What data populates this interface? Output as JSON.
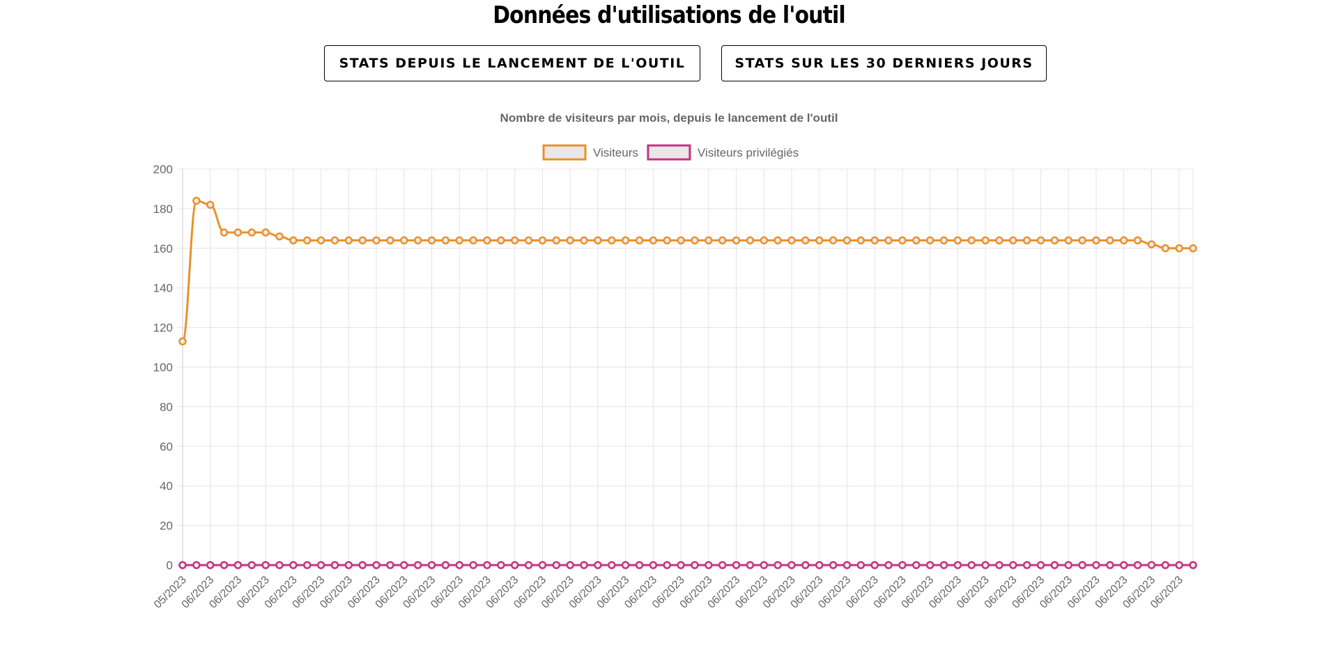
{
  "page": {
    "title": "Données d'utilisations de l'outil"
  },
  "buttons": {
    "since_launch_label": "STATS DEPUIS LE LANCEMENT DE L'OUTIL",
    "last_30_days_label": "STATS SUR LES 30 DERNIERS JOURS"
  },
  "chart_data": {
    "type": "line",
    "title": "Nombre de visiteurs par mois, depuis le lancement de l'outil",
    "xlabel": "",
    "ylabel": "",
    "ylim": [
      0,
      200
    ],
    "yticks": [
      0,
      20,
      40,
      60,
      80,
      100,
      120,
      140,
      160,
      180,
      200
    ],
    "grid": true,
    "legend_position": "top-center",
    "x": [
      "05/2023",
      "06/2023",
      "06/2023",
      "06/2023",
      "06/2023",
      "06/2023",
      "06/2023",
      "06/2023",
      "06/2023",
      "06/2023",
      "06/2023",
      "06/2023",
      "06/2023",
      "06/2023",
      "06/2023",
      "06/2023",
      "06/2023",
      "06/2023",
      "06/2023",
      "06/2023",
      "06/2023",
      "06/2023",
      "06/2023",
      "06/2023",
      "06/2023",
      "06/2023",
      "06/2023",
      "06/2023",
      "06/2023",
      "06/2023",
      "06/2023",
      "06/2023",
      "06/2023",
      "06/2023",
      "06/2023",
      "06/2023",
      "06/2023",
      "06/2023",
      "06/2023",
      "06/2023",
      "06/2023",
      "06/2023",
      "06/2023",
      "06/2023",
      "06/2023",
      "06/2023",
      "06/2023",
      "06/2023",
      "06/2023",
      "06/2023",
      "06/2023",
      "06/2023",
      "06/2023",
      "06/2023",
      "06/2023",
      "06/2023",
      "06/2023",
      "06/2023",
      "06/2023",
      "06/2023",
      "06/2023",
      "06/2023",
      "06/2023",
      "06/2023",
      "06/2023",
      "06/2023",
      "06/2023",
      "06/2023",
      "06/2023",
      "06/2023",
      "06/2023",
      "06/2023",
      "06/2023",
      "06/2023"
    ],
    "series": [
      {
        "name": "Visiteurs",
        "color": "#e8912b",
        "values": [
          113,
          184,
          182,
          168,
          168,
          168,
          168,
          166,
          164,
          164,
          164,
          164,
          164,
          164,
          164,
          164,
          164,
          164,
          164,
          164,
          164,
          164,
          164,
          164,
          164,
          164,
          164,
          164,
          164,
          164,
          164,
          164,
          164,
          164,
          164,
          164,
          164,
          164,
          164,
          164,
          164,
          164,
          164,
          164,
          164,
          164,
          164,
          164,
          164,
          164,
          164,
          164,
          164,
          164,
          164,
          164,
          164,
          164,
          164,
          164,
          164,
          164,
          164,
          164,
          164,
          164,
          164,
          164,
          164,
          164,
          162,
          160,
          160,
          160
        ]
      },
      {
        "name": "Visiteurs privilégiés",
        "color": "#c8327f",
        "values": [
          0,
          0,
          0,
          0,
          0,
          0,
          0,
          0,
          0,
          0,
          0,
          0,
          0,
          0,
          0,
          0,
          0,
          0,
          0,
          0,
          0,
          0,
          0,
          0,
          0,
          0,
          0,
          0,
          0,
          0,
          0,
          0,
          0,
          0,
          0,
          0,
          0,
          0,
          0,
          0,
          0,
          0,
          0,
          0,
          0,
          0,
          0,
          0,
          0,
          0,
          0,
          0,
          0,
          0,
          0,
          0,
          0,
          0,
          0,
          0,
          0,
          0,
          0,
          0,
          0,
          0,
          0,
          0,
          0,
          0,
          0,
          0,
          0,
          0
        ]
      }
    ]
  }
}
